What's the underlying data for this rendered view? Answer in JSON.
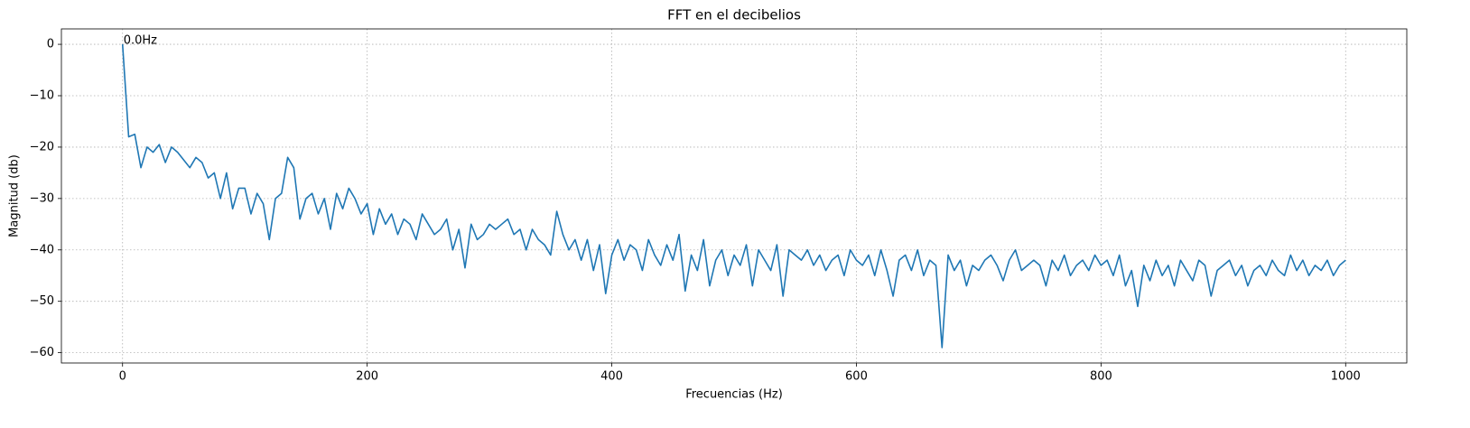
{
  "chart_data": {
    "type": "line",
    "title": "FFT en el decibelios",
    "xlabel": "Frecuencias (Hz)",
    "ylabel": "Magnitud (db)",
    "annotation": "0.0Hz",
    "color": "#1f77b4",
    "grid": true,
    "xlim": [
      -50,
      1050
    ],
    "ylim": [
      -62,
      3
    ],
    "xticks": [
      0,
      200,
      400,
      600,
      800,
      1000
    ],
    "yticks": [
      0,
      {
        "value": -10,
        "label": "−10"
      },
      {
        "value": -20,
        "label": "−20"
      },
      {
        "value": -30,
        "label": "−30"
      },
      {
        "value": -40,
        "label": "−40"
      },
      {
        "value": -50,
        "label": "−50"
      },
      {
        "value": -60,
        "label": "−60"
      }
    ],
    "x": [
      0,
      5,
      10,
      15,
      20,
      25,
      30,
      35,
      40,
      45,
      50,
      55,
      60,
      65,
      70,
      75,
      80,
      85,
      90,
      95,
      100,
      105,
      110,
      115,
      120,
      125,
      130,
      135,
      140,
      145,
      150,
      155,
      160,
      165,
      170,
      175,
      180,
      185,
      190,
      195,
      200,
      205,
      210,
      215,
      220,
      225,
      230,
      235,
      240,
      245,
      250,
      255,
      260,
      265,
      270,
      275,
      280,
      285,
      290,
      295,
      300,
      305,
      310,
      315,
      320,
      325,
      330,
      335,
      340,
      345,
      350,
      355,
      360,
      365,
      370,
      375,
      380,
      385,
      390,
      395,
      400,
      405,
      410,
      415,
      420,
      425,
      430,
      435,
      440,
      445,
      450,
      455,
      460,
      465,
      470,
      475,
      480,
      485,
      490,
      495,
      500,
      505,
      510,
      515,
      520,
      525,
      530,
      535,
      540,
      545,
      550,
      555,
      560,
      565,
      570,
      575,
      580,
      585,
      590,
      595,
      600,
      605,
      610,
      615,
      620,
      625,
      630,
      635,
      640,
      645,
      650,
      655,
      660,
      665,
      670,
      675,
      680,
      685,
      690,
      695,
      700,
      705,
      710,
      715,
      720,
      725,
      730,
      735,
      740,
      745,
      750,
      755,
      760,
      765,
      770,
      775,
      780,
      785,
      790,
      795,
      800,
      805,
      810,
      815,
      820,
      825,
      830,
      835,
      840,
      845,
      850,
      855,
      860,
      865,
      870,
      875,
      880,
      885,
      890,
      895,
      900,
      905,
      910,
      915,
      920,
      925,
      930,
      935,
      940,
      945,
      950,
      955,
      960,
      965,
      970,
      975,
      980,
      985,
      990,
      995,
      1000
    ],
    "values": [
      0,
      -18,
      -17.5,
      -24,
      -20,
      -21,
      -19.5,
      -23,
      -20,
      -21,
      -22.5,
      -24,
      -22,
      -23,
      -26,
      -25,
      -30,
      -25,
      -32,
      -28,
      -28,
      -33,
      -29,
      -31,
      -38,
      -30,
      -29,
      -22,
      -24,
      -34,
      -30,
      -29,
      -33,
      -30,
      -36,
      -29,
      -32,
      -28,
      -30,
      -33,
      -31,
      -37,
      -32,
      -35,
      -33,
      -37,
      -34,
      -35,
      -38,
      -33,
      -35,
      -37,
      -36,
      -34,
      -40,
      -36,
      -43.5,
      -35,
      -38,
      -37,
      -35,
      -36,
      -35,
      -34,
      -37,
      -36,
      -40,
      -36,
      -38,
      -39,
      -41,
      -32.5,
      -37,
      -40,
      -38,
      -42,
      -38,
      -44,
      -39,
      -48.5,
      -41,
      -38,
      -42,
      -39,
      -40,
      -44,
      -38,
      -41,
      -43,
      -39,
      -42,
      -37,
      -48,
      -41,
      -44,
      -38,
      -47,
      -42,
      -40,
      -45,
      -41,
      -43,
      -39,
      -47,
      -40,
      -42,
      -44,
      -39,
      -49,
      -40,
      -41,
      -42,
      -40,
      -43,
      -41,
      -44,
      -42,
      -41,
      -45,
      -40,
      -42,
      -43,
      -41,
      -45,
      -40,
      -44,
      -49,
      -42,
      -41,
      -44,
      -40,
      -45,
      -42,
      -43,
      -59,
      -41,
      -44,
      -42,
      -47,
      -43,
      -44,
      -42,
      -41,
      -43,
      -46,
      -42,
      -40,
      -44,
      -43,
      -42,
      -43,
      -47,
      -42,
      -44,
      -41,
      -45,
      -43,
      -42,
      -44,
      -41,
      -43,
      -42,
      -45,
      -41,
      -47,
      -44,
      -51,
      -43,
      -46,
      -42,
      -45,
      -43,
      -47,
      -42,
      -44,
      -46,
      -42,
      -43,
      -49,
      -44,
      -43,
      -42,
      -45,
      -43,
      -47,
      -44,
      -43,
      -45,
      -42,
      -44,
      -45,
      -41,
      -44,
      -42,
      -45,
      -43,
      -44,
      -42,
      -45,
      -43,
      -42
    ]
  }
}
